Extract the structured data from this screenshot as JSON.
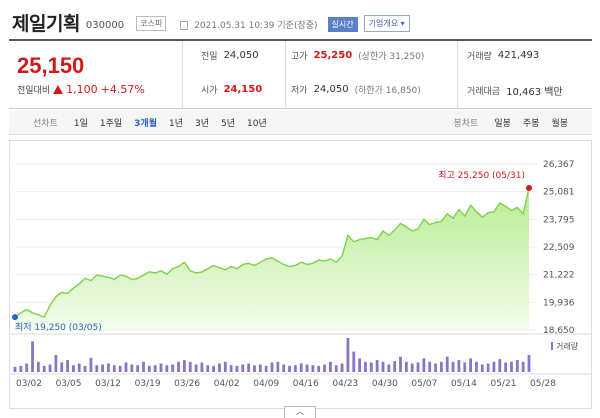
{
  "header": {
    "name": "제일기획",
    "code": "030000",
    "market": "코스피",
    "datetime": "2021.05.31 10:39 기준(장중)",
    "realtime": "실시간",
    "company_info": "기업개요 ▾"
  },
  "summary": {
    "price": "25,150",
    "change_label": "전일대비",
    "change_value": "1,100",
    "change_pct": "+4.57%",
    "prev_close_label": "전일",
    "prev_close": "24,050",
    "open_label": "시가",
    "open": "24,150",
    "high_label": "고가",
    "high": "25,250",
    "upper_limit": "(상한가 31,250)",
    "low_label": "저가",
    "low": "24,050",
    "lower_limit": "(하한가 16,850)",
    "volume_label": "거래량",
    "volume": "421,493",
    "amount_label": "거래대금",
    "amount": "10,463 백만"
  },
  "period_bar": {
    "line_label": "선차트",
    "tabs": [
      "1일",
      "1주일",
      "3개월",
      "1년",
      "3년",
      "5년",
      "10년"
    ],
    "selected": "3개월",
    "candle_label": "봉차트",
    "candle_tabs": [
      "일봉",
      "주봉",
      "월봉"
    ]
  },
  "colors": {
    "up": "#d01a1a",
    "accent": "#2a62c8",
    "line": "#7ed14a",
    "volume_bar": "#8b74c8"
  },
  "chart_data": {
    "type": "area",
    "ylim": [
      18650,
      26367
    ],
    "y_ticks": [
      "26,367",
      "25,081",
      "23,795",
      "22,509",
      "21,222",
      "19,936",
      "18,650"
    ],
    "x_ticks": [
      "03/02",
      "03/05",
      "03/12",
      "03/19",
      "03/26",
      "04/02",
      "04/09",
      "04/16",
      "04/23",
      "04/30",
      "05/07",
      "05/14",
      "05/21",
      "05/28"
    ],
    "max_label": "최고 25,250 (05/31)",
    "min_label": "최저 19,250 (03/05)",
    "volume_legend": "거래량",
    "values": [
      19250,
      19450,
      19600,
      19450,
      19350,
      19250,
      19800,
      20200,
      20400,
      20350,
      20600,
      20800,
      21050,
      20950,
      21200,
      21150,
      21100,
      21000,
      21200,
      21150,
      21000,
      21050,
      21200,
      21350,
      21300,
      21400,
      21250,
      21500,
      21600,
      21800,
      21400,
      21300,
      21350,
      21500,
      21650,
      21550,
      21450,
      21600,
      21500,
      21700,
      21750,
      21650,
      21800,
      21950,
      22000,
      21850,
      21700,
      21600,
      21650,
      21800,
      21700,
      21750,
      21900,
      21850,
      21950,
      21800,
      22100,
      23050,
      22750,
      22850,
      22900,
      22950,
      22850,
      23250,
      23050,
      23300,
      23600,
      23450,
      23250,
      23350,
      23800,
      23550,
      23650,
      23700,
      24050,
      23850,
      24250,
      23950,
      24450,
      24150,
      23900,
      24100,
      24150,
      24550,
      24400,
      24200,
      24350,
      24050,
      25250
    ],
    "volumes": [
      0.15,
      0.18,
      0.25,
      0.9,
      0.3,
      0.18,
      0.22,
      0.5,
      0.28,
      0.35,
      0.2,
      0.25,
      0.18,
      0.42,
      0.2,
      0.22,
      0.25,
      0.2,
      0.18,
      0.28,
      0.22,
      0.2,
      0.3,
      0.18,
      0.2,
      0.25,
      0.2,
      0.22,
      0.3,
      0.35,
      0.3,
      0.22,
      0.28,
      0.2,
      0.18,
      0.25,
      0.3,
      0.2,
      0.18,
      0.22,
      0.25,
      0.2,
      0.22,
      0.18,
      0.28,
      0.3,
      0.22,
      0.18,
      0.2,
      0.25,
      0.22,
      0.2,
      0.18,
      0.22,
      0.3,
      0.2,
      0.25,
      1.0,
      0.6,
      0.4,
      0.3,
      0.28,
      0.35,
      0.3,
      0.22,
      0.32,
      0.45,
      0.3,
      0.25,
      0.28,
      0.4,
      0.3,
      0.25,
      0.3,
      0.45,
      0.3,
      0.35,
      0.28,
      0.4,
      0.3,
      0.22,
      0.25,
      0.3,
      0.38,
      0.28,
      0.3,
      0.35,
      0.3,
      0.5
    ]
  }
}
